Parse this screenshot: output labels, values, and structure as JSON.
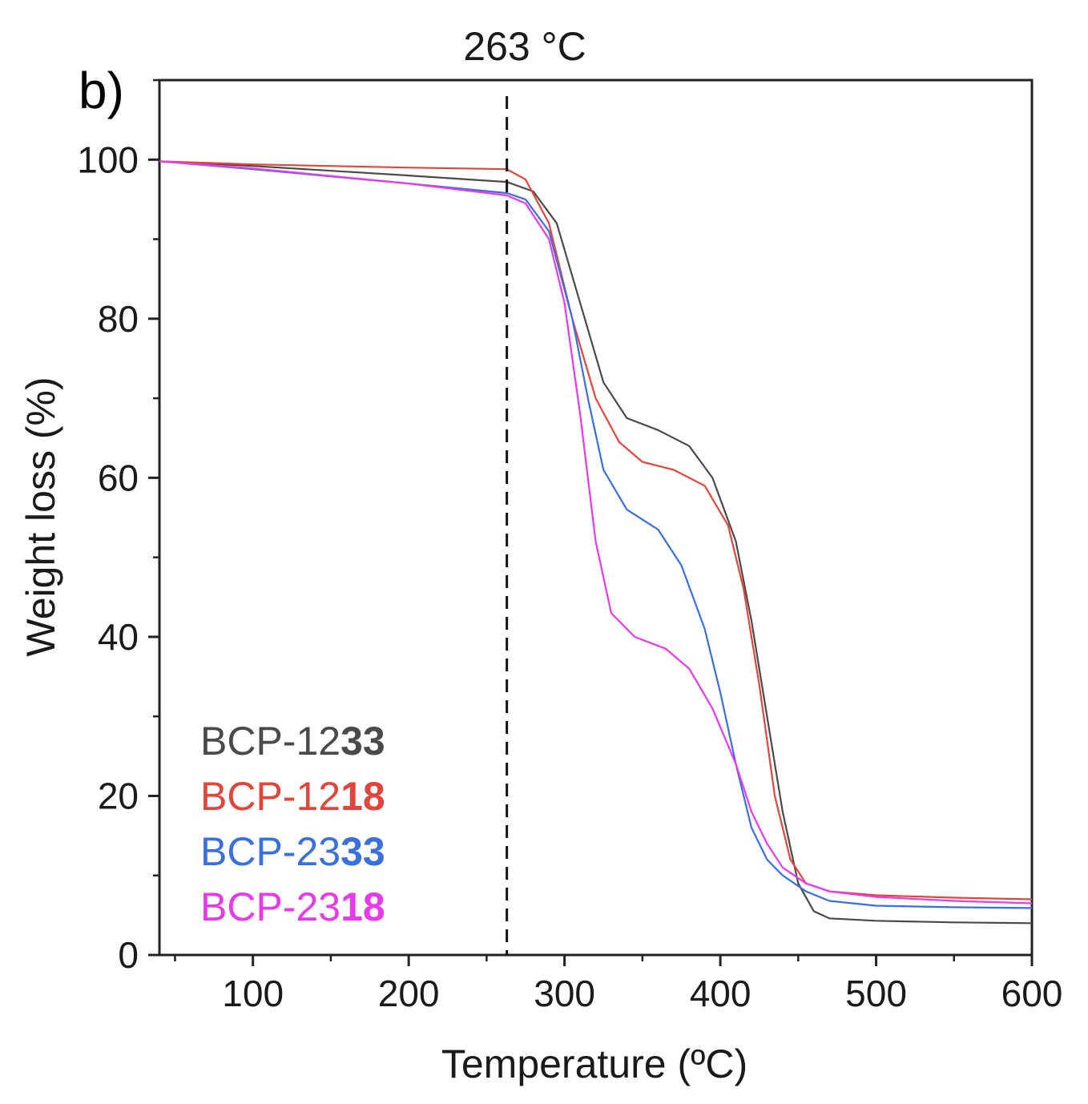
{
  "chart_data": {
    "type": "line",
    "panel_label": "b)",
    "xlabel": "Temperature (ºC)",
    "ylabel": "Weight loss (%)",
    "xlim": [
      40,
      600
    ],
    "ylim": [
      0,
      110
    ],
    "xticks": [
      100,
      200,
      300,
      400,
      500,
      600
    ],
    "yticks": [
      0,
      20,
      40,
      60,
      80,
      100
    ],
    "grid": false,
    "legend_position": "bottom-left",
    "annotation": {
      "text": "263 °C",
      "x": 263,
      "style": "dashed vertical line"
    },
    "series": [
      {
        "name": "BCP-1233",
        "name_prefix": "BCP-12",
        "name_suffix": "33",
        "color": "#4a4a4a",
        "x": [
          40,
          100,
          200,
          263,
          280,
          295,
          310,
          325,
          340,
          360,
          380,
          395,
          410,
          420,
          430,
          440,
          450,
          460,
          470,
          500,
          550,
          600
        ],
        "y": [
          99.8,
          99.2,
          98.0,
          97.2,
          96.0,
          92.0,
          82.0,
          72.0,
          67.5,
          66.0,
          64.0,
          60.0,
          52.0,
          42.0,
          30.0,
          18.0,
          9.0,
          5.5,
          4.6,
          4.3,
          4.1,
          4.0
        ]
      },
      {
        "name": "BCP-1218",
        "name_prefix": "BCP-12",
        "name_suffix": "18",
        "color": "#e0463c",
        "x": [
          40,
          100,
          200,
          263,
          275,
          290,
          305,
          320,
          335,
          350,
          370,
          390,
          405,
          415,
          425,
          435,
          445,
          455,
          470,
          500,
          550,
          600
        ],
        "y": [
          99.8,
          99.4,
          99.0,
          98.8,
          97.5,
          92.0,
          80.0,
          70.0,
          64.5,
          62.0,
          61.0,
          59.0,
          54.0,
          46.0,
          34.0,
          20.0,
          12.0,
          9.0,
          8.0,
          7.5,
          7.2,
          7.0
        ]
      },
      {
        "name": "BCP-2333",
        "name_prefix": "BCP-23",
        "name_suffix": "33",
        "color": "#3a6fe0",
        "x": [
          40,
          100,
          200,
          263,
          275,
          290,
          305,
          315,
          325,
          340,
          360,
          375,
          390,
          400,
          410,
          420,
          430,
          440,
          455,
          470,
          500,
          550,
          600
        ],
        "y": [
          99.8,
          98.8,
          97.0,
          95.8,
          95.0,
          91.0,
          80.0,
          70.0,
          61.0,
          56.0,
          53.5,
          49.0,
          41.0,
          33.0,
          24.0,
          16.0,
          12.0,
          10.0,
          8.0,
          6.8,
          6.2,
          6.0,
          5.9
        ]
      },
      {
        "name": "BCP-2318",
        "name_prefix": "BCP-23",
        "name_suffix": "18",
        "color": "#e83ae8",
        "x": [
          40,
          100,
          200,
          263,
          275,
          290,
          300,
          310,
          320,
          330,
          345,
          365,
          380,
          395,
          410,
          420,
          430,
          440,
          455,
          470,
          500,
          550,
          600
        ],
        "y": [
          99.8,
          98.9,
          97.0,
          95.5,
          94.5,
          90.0,
          82.0,
          68.0,
          52.0,
          43.0,
          40.0,
          38.5,
          36.0,
          31.0,
          24.0,
          18.0,
          14.0,
          11.0,
          9.0,
          8.0,
          7.3,
          6.8,
          6.5
        ]
      }
    ]
  }
}
